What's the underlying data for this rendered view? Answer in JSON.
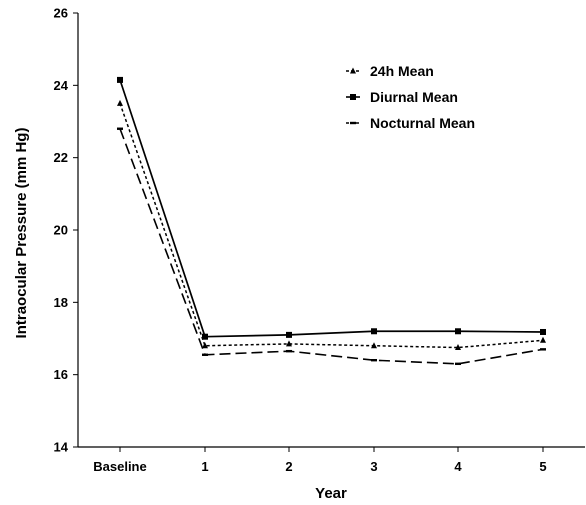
{
  "chart_data": {
    "type": "line",
    "title": "",
    "xlabel": "Year",
    "ylabel": "Intraocular Pressure (mm Hg)",
    "categories": [
      "Baseline",
      "1",
      "2",
      "3",
      "4",
      "5"
    ],
    "ylim": [
      14,
      26
    ],
    "yticks": [
      "14",
      "16",
      "18",
      "20",
      "22",
      "24",
      "26"
    ],
    "grid": false,
    "legend_position": "top-right",
    "series": [
      {
        "name": "24h Mean",
        "marker": "triangle",
        "dash": "short-dash",
        "values": [
          23.5,
          16.8,
          16.85,
          16.8,
          16.75,
          16.95
        ]
      },
      {
        "name": "Diurnal Mean",
        "marker": "square",
        "dash": "solid",
        "values": [
          24.15,
          17.05,
          17.1,
          17.2,
          17.2,
          17.18
        ]
      },
      {
        "name": "Nocturnal Mean",
        "marker": "dash",
        "dash": "long-dash",
        "values": [
          22.8,
          16.55,
          16.65,
          16.4,
          16.3,
          16.7
        ]
      }
    ]
  }
}
